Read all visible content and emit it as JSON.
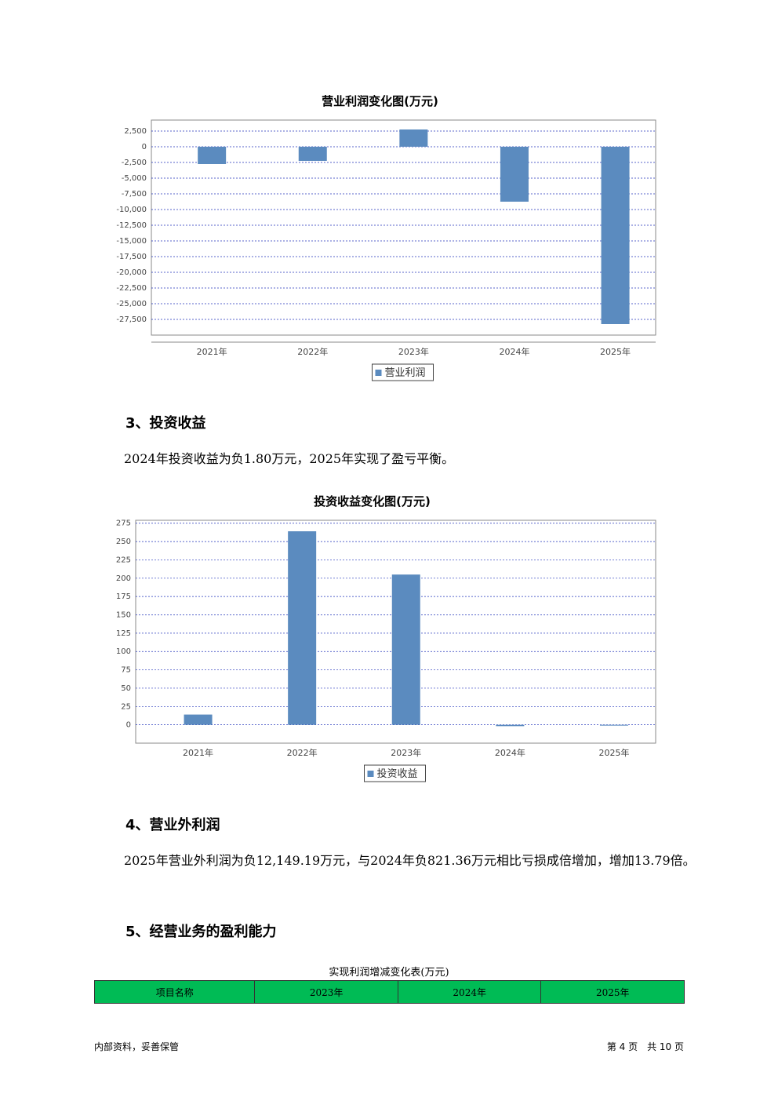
{
  "chart_data": [
    {
      "type": "bar",
      "title": "营业利润变化图(万元)",
      "categories": [
        "2021年",
        "2022年",
        "2023年",
        "2024年",
        "2025年"
      ],
      "series": [
        {
          "name": "营业利润",
          "color": "#5b8bbf",
          "values": [
            -2750,
            -2250,
            2750,
            -8750,
            -28250
          ]
        }
      ],
      "ylim": [
        -30000,
        4250
      ],
      "yticks": [
        {
          "value": 2500,
          "label": "2,500"
        },
        0,
        {
          "value": -2500,
          "label": "-2,500"
        },
        {
          "value": -5000,
          "label": "-5,000"
        },
        {
          "value": -7500,
          "label": "-7,500"
        },
        {
          "value": -10000,
          "label": "-10,000"
        },
        {
          "value": -12500,
          "label": "-12,500"
        },
        {
          "value": -15000,
          "label": "-15,000"
        },
        {
          "value": -17500,
          "label": "-17,500"
        },
        {
          "value": -20000,
          "label": "-20,000"
        },
        {
          "value": -22500,
          "label": "-22,500"
        },
        {
          "value": -25000,
          "label": "-25,000"
        },
        {
          "value": -27500,
          "label": "-27,500"
        }
      ],
      "grid": true,
      "legend": "bottom"
    },
    {
      "type": "bar",
      "title": "投资收益变化图(万元)",
      "categories": [
        "2021年",
        "2022年",
        "2023年",
        "2024年",
        "2025年"
      ],
      "series": [
        {
          "name": "投资收益",
          "color": "#5b8bbf",
          "values": [
            14,
            264,
            205,
            -1.8,
            0
          ]
        }
      ],
      "ylim": [
        -25,
        279
      ],
      "yticks": [
        0,
        25,
        50,
        75,
        100,
        125,
        150,
        175,
        200,
        225,
        250,
        275
      ],
      "grid": true,
      "legend": "bottom"
    }
  ],
  "sections": [
    {
      "heading": "3、投资收益",
      "paragraph": "2024年投资收益为负1.80万元，2025年实现了盈亏平衡。"
    },
    {
      "heading": "4、营业外利润",
      "paragraph": "2025年营业外利润为负12,149.19万元，与2024年负821.36万元相比亏损成倍增加，增加13.79倍。"
    },
    {
      "heading": "5、经营业务的盈利能力"
    }
  ],
  "table": {
    "title": "实现利润增减变化表(万元)",
    "header": [
      "项目名称",
      "2023年",
      "2024年",
      "2025年"
    ]
  },
  "footer": {
    "left": "内部资料，妥善保管",
    "right": "第 4 页　共 10 页"
  }
}
